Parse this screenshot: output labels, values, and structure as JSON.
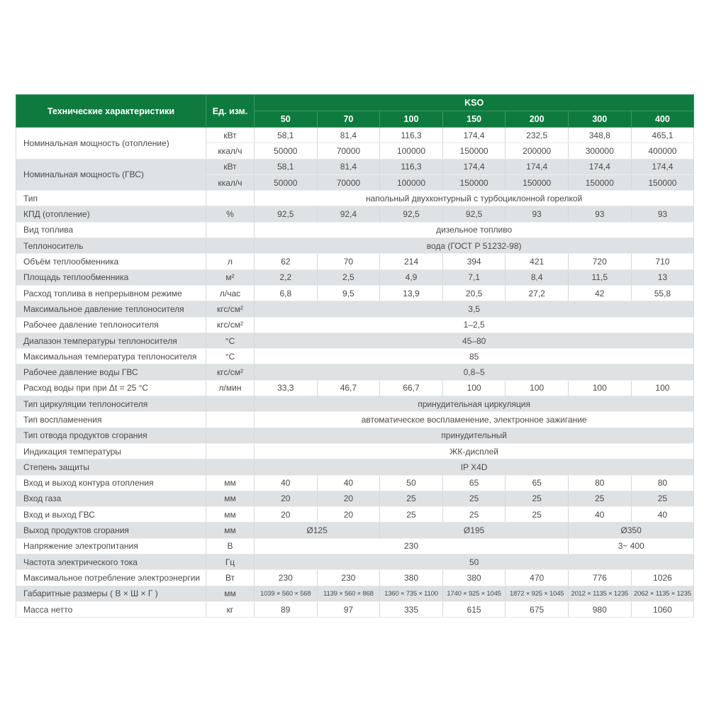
{
  "header": {
    "label": "Технические характеристики",
    "unit": "Ед. изм.",
    "series": "KSO",
    "models": [
      "50",
      "70",
      "100",
      "150",
      "200",
      "300",
      "400"
    ]
  },
  "colors": {
    "header_bg": "#0f7a3e",
    "row_alt": "#dfe2e4"
  },
  "rows": [
    {
      "label": "Номинальная мощность (отопление)",
      "sub": [
        {
          "unit": "кВт",
          "values": [
            "58,1",
            "81,4",
            "116,3",
            "174,4",
            "232,5",
            "348,8",
            "465,1"
          ]
        },
        {
          "unit": "ккал/ч",
          "values": [
            "50000",
            "70000",
            "100000",
            "150000",
            "200000",
            "300000",
            "400000"
          ]
        }
      ]
    },
    {
      "label": "Номинальная мощность (ГВС)",
      "sub": [
        {
          "unit": "кВт",
          "values": [
            "58,1",
            "81,4",
            "116,3",
            "174,4",
            "174,4",
            "174,4",
            "174,4"
          ]
        },
        {
          "unit": "ккал/ч",
          "values": [
            "50000",
            "70000",
            "100000",
            "150000",
            "150000",
            "150000",
            "150000"
          ]
        }
      ]
    },
    {
      "label": "Тип",
      "unit": "",
      "values": [
        {
          "v": "напольный двухконтурный с турбоциклонной горелкой",
          "span": 7
        }
      ]
    },
    {
      "label": "КПД (отопление)",
      "unit": "%",
      "values": [
        "92,5",
        "92,4",
        "92,5",
        "92,5",
        "93",
        "93",
        "93"
      ]
    },
    {
      "label": "Вид топлива",
      "unit": "",
      "values": [
        {
          "v": "дизельное топливо",
          "span": 7
        }
      ]
    },
    {
      "label": "Теплоноситель",
      "unit": "",
      "values": [
        {
          "v": "вода (ГОСТ Р 51232-98)",
          "span": 7
        }
      ]
    },
    {
      "label": "Объём теплообменника",
      "unit": "л",
      "values": [
        "62",
        "70",
        "214",
        "394",
        "421",
        "720",
        "710"
      ]
    },
    {
      "label": "Площадь теплообменника",
      "unit": "м²",
      "values": [
        "2,2",
        "2,5",
        "4,9",
        "7,1",
        "8,4",
        "11,5",
        "13"
      ]
    },
    {
      "label": "Расход топлива в непрерывном режиме",
      "unit": "л/час",
      "values": [
        "6,8",
        "9,5",
        "13,9",
        "20,5",
        "27,2",
        "42",
        "55,8"
      ]
    },
    {
      "label": "Максимальное давление теплоносителя",
      "unit": "кгс/см²",
      "values": [
        {
          "v": "3,5",
          "span": 7
        }
      ]
    },
    {
      "label": "Рабочее давление теплоносителя",
      "unit": "кгс/см²",
      "values": [
        {
          "v": "1–2,5",
          "span": 7
        }
      ]
    },
    {
      "label": "Диапазон температуры теплоносителя",
      "unit": "°C",
      "values": [
        {
          "v": "45–80",
          "span": 7
        }
      ]
    },
    {
      "label": "Максимальная температура теплоносителя",
      "unit": "°C",
      "values": [
        {
          "v": "85",
          "span": 7
        }
      ]
    },
    {
      "label": "Рабочее давление воды ГВС",
      "unit": "кгс/см²",
      "values": [
        {
          "v": "0,8–5",
          "span": 7
        }
      ]
    },
    {
      "label": "Расход воды при при Δt = 25 °C",
      "unit": "л/мин",
      "values": [
        "33,3",
        "46,7",
        "66,7",
        "100",
        "100",
        "100",
        "100"
      ]
    },
    {
      "label": "Тип циркуляции теплоносителя",
      "unit": "",
      "values": [
        {
          "v": "принудительная циркуляция",
          "span": 7
        }
      ]
    },
    {
      "label": "Тип воспламенения",
      "unit": "",
      "values": [
        {
          "v": "автоматическое воспламенение, электронное зажигание",
          "span": 7
        }
      ]
    },
    {
      "label": "Тип отвода продуктов сгорания",
      "unit": "",
      "values": [
        {
          "v": "принудительный",
          "span": 7
        }
      ]
    },
    {
      "label": "Индикация температуры",
      "unit": "",
      "values": [
        {
          "v": "ЖК-дисплей",
          "span": 7
        }
      ]
    },
    {
      "label": "Степень защиты",
      "unit": "",
      "values": [
        {
          "v": "IP X4D",
          "span": 7
        }
      ]
    },
    {
      "label": "Вход и выход контура отопления",
      "unit": "мм",
      "values": [
        "40",
        "40",
        "50",
        "65",
        "65",
        "80",
        "80"
      ]
    },
    {
      "label": "Вход газа",
      "unit": "мм",
      "values": [
        "20",
        "20",
        "25",
        "25",
        "25",
        "25",
        "25"
      ]
    },
    {
      "label": "Вход и выход ГВС",
      "unit": "мм",
      "values": [
        "20",
        "20",
        "25",
        "25",
        "25",
        "40",
        "40"
      ]
    },
    {
      "label": "Выход продуктов сгорания",
      "unit": "мм",
      "values": [
        {
          "v": "Ø125",
          "span": 2
        },
        {
          "v": "Ø195",
          "span": 3
        },
        {
          "v": "Ø350",
          "span": 2
        }
      ]
    },
    {
      "label": "Напряжение электропитания",
      "unit": "В",
      "values": [
        {
          "v": "230",
          "span": 5
        },
        {
          "v": "3~ 400",
          "span": 2
        }
      ]
    },
    {
      "label": "Частота электрического тока",
      "unit": "Гц",
      "values": [
        {
          "v": "50",
          "span": 7
        }
      ]
    },
    {
      "label": "Максимальное потребление электроэнергии",
      "unit": "Вт",
      "values": [
        "230",
        "230",
        "380",
        "380",
        "470",
        "776",
        "1026"
      ]
    },
    {
      "label": "Габаритные размеры ( В × Ш × Г )",
      "unit": "мм",
      "dims": true,
      "values": [
        "1039 × 560 × 568",
        "1139 × 560 × 868",
        "1360 × 735 × 1100",
        "1740 × 925 × 1045",
        "1872 × 925 × 1045",
        "2012 × 1135 × 1235",
        "2062 × 1135 × 1235"
      ]
    },
    {
      "label": "Масса нетто",
      "unit": "кг",
      "values": [
        "89",
        "97",
        "335",
        "615",
        "675",
        "980",
        "1060"
      ]
    }
  ]
}
